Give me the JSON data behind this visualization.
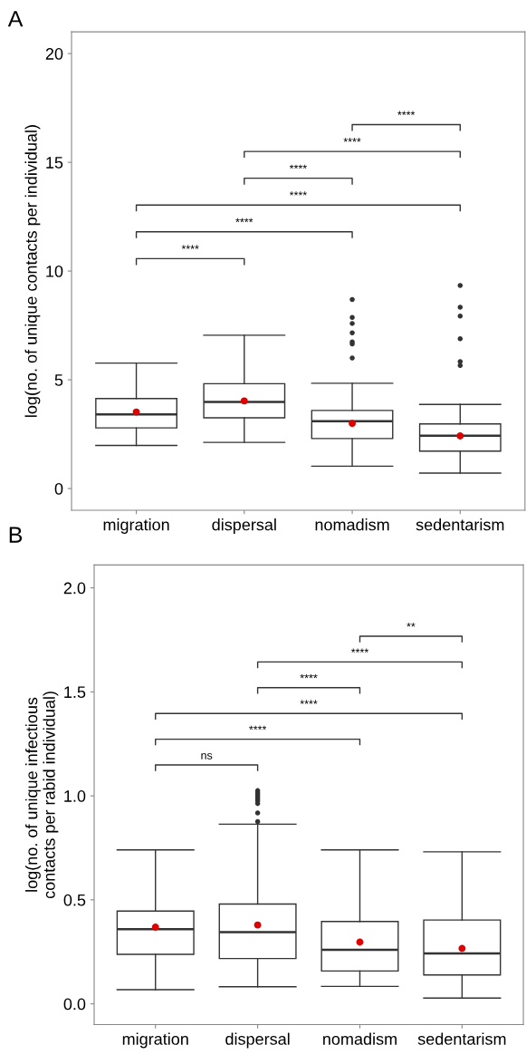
{
  "chart_data": [
    {
      "type": "box",
      "title": "A",
      "ylabel": "log(no. of unique contacts per individual)",
      "categories": [
        "migration",
        "dispersal",
        "nomadism",
        "sedentarism"
      ],
      "ylim": [
        -1,
        21
      ],
      "yticks": [
        0,
        5,
        10,
        15,
        20
      ],
      "grid": false,
      "legend": false,
      "boxes": [
        {
          "low": 1.98,
          "q1": 2.79,
          "median": 3.41,
          "q3": 4.14,
          "high": 5.77,
          "mean": 3.52
        },
        {
          "low": 2.12,
          "q1": 3.25,
          "median": 3.98,
          "q3": 4.82,
          "high": 7.05,
          "mean": 4.03
        },
        {
          "low": 1.03,
          "q1": 2.3,
          "median": 3.1,
          "q3": 3.59,
          "high": 4.84,
          "mean": 2.99,
          "outliers": [
            6.0,
            6.65,
            6.74,
            7.16,
            7.59,
            7.87,
            8.69
          ]
        },
        {
          "low": 0.71,
          "q1": 1.72,
          "median": 2.43,
          "q3": 2.97,
          "high": 3.87,
          "mean": 2.42,
          "outliers": [
            5.66,
            5.84,
            6.89,
            7.93,
            8.34,
            9.34
          ]
        }
      ],
      "annotations": [
        "****",
        "****",
        "****",
        "****",
        "****",
        "****"
      ]
    },
    {
      "type": "box",
      "title": "B",
      "ylabel": "log(no. of unique infectious\ncontacts per rabid individual)",
      "categories": [
        "migration",
        "dispersal",
        "nomadism",
        "sedentarism"
      ],
      "ylim": [
        -0.1,
        2.11
      ],
      "yticks": [
        {
          "value": 0,
          "label": "0.0"
        },
        0.5,
        {
          "value": 1,
          "label": "1.0"
        },
        1.5,
        {
          "value": 2,
          "label": "2.0"
        }
      ],
      "grid": false,
      "legend": false,
      "boxes": [
        {
          "low": 0.068,
          "q1": 0.238,
          "median": 0.359,
          "q3": 0.446,
          "high": 0.74,
          "mean": 0.369
        },
        {
          "low": 0.082,
          "q1": 0.218,
          "median": 0.345,
          "q3": 0.48,
          "high": 0.864,
          "mean": 0.379,
          "outliers": [
            0.876,
            0.918,
            0.963,
            0.975,
            0.985,
            0.995,
            1.005,
            1.015,
            1.025
          ]
        },
        {
          "low": 0.084,
          "q1": 0.158,
          "median": 0.26,
          "q3": 0.396,
          "high": 0.74,
          "mean": 0.297
        },
        {
          "low": 0.028,
          "q1": 0.139,
          "median": 0.242,
          "q3": 0.403,
          "high": 0.731,
          "mean": 0.266
        }
      ],
      "annotations": [
        "ns",
        "****",
        "****",
        "****",
        "****",
        "**"
      ]
    }
  ]
}
